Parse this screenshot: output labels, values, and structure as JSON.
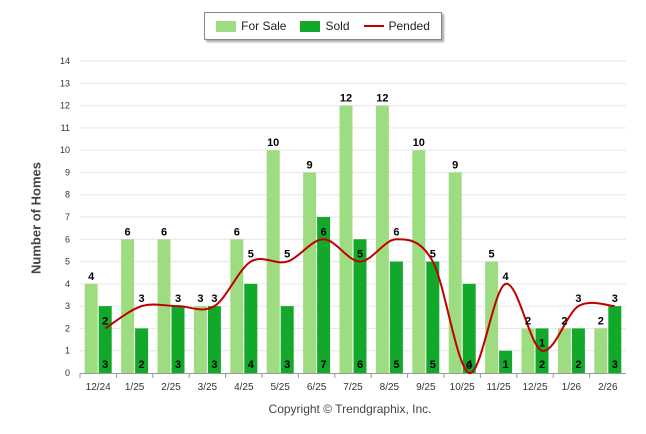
{
  "chart_data": {
    "type": "bar",
    "title": "",
    "ylabel": "Number of Homes",
    "xlabel": "",
    "ylim": [
      0,
      14
    ],
    "yticks": [
      0,
      1,
      2,
      3,
      4,
      5,
      6,
      7,
      8,
      9,
      10,
      11,
      12,
      13,
      14
    ],
    "grid": true,
    "legend_position": "top-center",
    "categories": [
      "12/24",
      "1/25",
      "2/25",
      "3/25",
      "4/25",
      "5/25",
      "6/25",
      "7/25",
      "8/25",
      "9/25",
      "10/25",
      "11/25",
      "12/25",
      "1/26",
      "2/26"
    ],
    "series": [
      {
        "name": "For Sale",
        "type": "bar",
        "color": "#9edc81",
        "values": [
          4,
          6,
          6,
          3,
          6,
          10,
          9,
          12,
          12,
          10,
          9,
          5,
          2,
          2,
          2
        ]
      },
      {
        "name": "Sold",
        "type": "bar",
        "color": "#12a82a",
        "values": [
          3,
          2,
          3,
          3,
          4,
          3,
          7,
          6,
          5,
          5,
          4,
          1,
          2,
          2,
          3
        ]
      },
      {
        "name": "Pended",
        "type": "line",
        "color": "#c00000",
        "values": [
          2,
          3,
          3,
          3,
          5,
          5,
          6,
          5,
          6,
          5,
          0,
          4,
          1,
          3,
          3
        ]
      }
    ],
    "copyright": "Copyright © Trendgraphix, Inc."
  }
}
